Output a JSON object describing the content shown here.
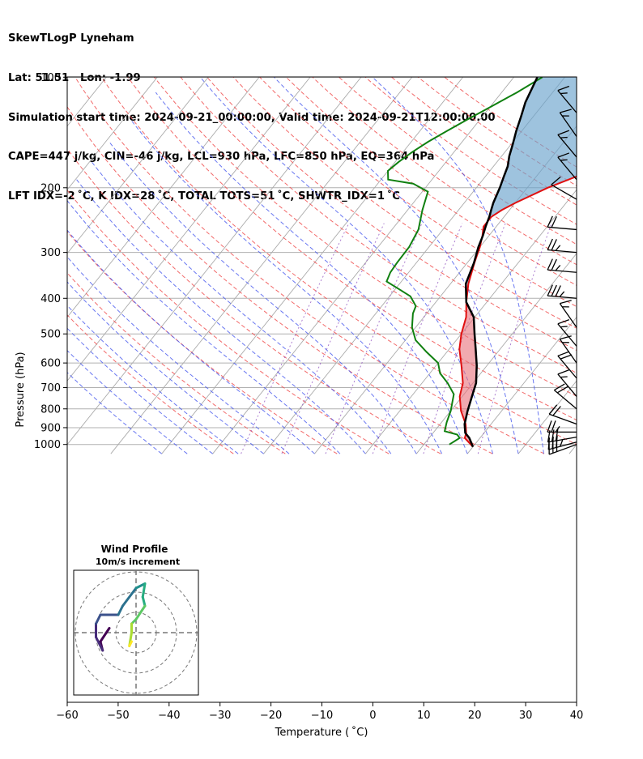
{
  "header": {
    "lines": [
      "SkewTLogP Lyneham",
      "Lat: 51.51   Lon: -1.99",
      "Simulation start time: 2024-09-21_00:00:00, Valid time: 2024-09-21T12:00:00.00",
      "CAPE=447 j/kg, CIN=-46 j/kg, LCL=930 hPa, LFC=850 hPa, EQ=364 hPa",
      "LFT IDX=-2 ˚C, K IDX=28 ˚C, TOTAL TOTS=51 ˚C, SHWTR_IDX=1 ˚C"
    ]
  },
  "chart_data": {
    "type": "line",
    "skew": "skew-T log-p",
    "title": "",
    "xlabel": "Temperature ( ˚C)",
    "ylabel": "Pressure (hPa)",
    "xlim": [
      -60,
      40
    ],
    "ylim": [
      1050,
      100
    ],
    "y_scale": "log",
    "x_ticks": [
      -60,
      -50,
      -40,
      -30,
      -20,
      -10,
      0,
      10,
      20,
      30,
      40
    ],
    "x_tick_labels": [
      "−60",
      "−50",
      "−40",
      "−30",
      "−20",
      "−10",
      "0",
      "10",
      "20",
      "30",
      "40"
    ],
    "y_ticks": [
      1000,
      900,
      800,
      700,
      600,
      500,
      400,
      300,
      200,
      100
    ],
    "y_tick_labels": [
      "1000",
      "900",
      "800",
      "700",
      "600",
      "500",
      "400",
      "300",
      "200",
      "100"
    ],
    "grid": true,
    "series": [
      {
        "role": "temperature",
        "color": "#e01010",
        "points": [
          [
            20,
            1015
          ],
          [
            17,
            960
          ],
          [
            16.5,
            930
          ],
          [
            15,
            880
          ],
          [
            12,
            810
          ],
          [
            9.5,
            740
          ],
          [
            8,
            680
          ],
          [
            5,
            610
          ],
          [
            2,
            550
          ],
          [
            0,
            500
          ],
          [
            -1.7,
            450
          ],
          [
            -4,
            410
          ],
          [
            -6.5,
            365
          ],
          [
            -8.6,
            320
          ],
          [
            -10,
            290
          ],
          [
            -11.3,
            270
          ],
          [
            -12.5,
            255
          ],
          [
            -12.5,
            240
          ],
          [
            -11.5,
            230
          ],
          [
            -10,
            220
          ],
          [
            -6,
            200
          ],
          [
            -2,
            186
          ],
          [
            1.5,
            175
          ],
          [
            4,
            164
          ],
          [
            6,
            152
          ],
          [
            7.5,
            140
          ],
          [
            9,
            128
          ],
          [
            10.5,
            117
          ],
          [
            12,
            100
          ]
        ]
      },
      {
        "role": "dewpoint",
        "color": "#108010",
        "points": [
          [
            15,
            1000
          ],
          [
            16,
            960
          ],
          [
            15,
            940
          ],
          [
            12,
            920
          ],
          [
            11,
            870
          ],
          [
            10,
            810
          ],
          [
            8,
            730
          ],
          [
            5,
            680
          ],
          [
            2,
            640
          ],
          [
            0,
            600
          ],
          [
            -4,
            560
          ],
          [
            -8,
            520
          ],
          [
            -10.7,
            480
          ],
          [
            -12.7,
            440
          ],
          [
            -13.3,
            420
          ],
          [
            -15.9,
            395
          ],
          [
            -18.8,
            380
          ],
          [
            -22.9,
            360
          ],
          [
            -23.6,
            340
          ],
          [
            -23.8,
            320
          ],
          [
            -23.9,
            290
          ],
          [
            -24.8,
            260
          ],
          [
            -27.1,
            230
          ],
          [
            -28.9,
            205
          ],
          [
            -33,
            195
          ],
          [
            -38.6,
            190
          ],
          [
            -40,
            180
          ],
          [
            -39.3,
            170
          ],
          [
            -38.2,
            160
          ],
          [
            -36.7,
            150
          ],
          [
            -34.7,
            140
          ],
          [
            -32.4,
            130
          ],
          [
            -29.8,
            120
          ],
          [
            -27,
            110
          ],
          [
            -24.4,
            100
          ]
        ]
      },
      {
        "role": "parcel",
        "color": "#000000",
        "points": [
          [
            20,
            1015
          ],
          [
            17.9,
            960
          ],
          [
            16.3,
            930
          ],
          [
            14.8,
            880
          ],
          [
            13.3,
            810
          ],
          [
            11.9,
            740
          ],
          [
            10.6,
            680
          ],
          [
            8,
            610
          ],
          [
            5.2,
            550
          ],
          [
            2.6,
            500
          ],
          [
            -0.2,
            450
          ],
          [
            -4,
            410
          ],
          [
            -7,
            365
          ],
          [
            -8.7,
            320
          ],
          [
            -10.3,
            290
          ],
          [
            -11.2,
            270
          ],
          [
            -12.1,
            255
          ],
          [
            -12.9,
            240
          ],
          [
            -13.6,
            230
          ],
          [
            -14.3,
            220
          ],
          [
            -15.4,
            200
          ],
          [
            -16.4,
            186
          ],
          [
            -17.2,
            175
          ],
          [
            -18.5,
            164
          ],
          [
            -19.7,
            152
          ],
          [
            -21.1,
            140
          ],
          [
            -22.4,
            128
          ],
          [
            -23.8,
            117
          ],
          [
            -25.4,
            100
          ]
        ]
      }
    ],
    "wind_barbs": [
      {
        "p": 1000,
        "spd": 30,
        "dir": 250
      },
      {
        "p": 985,
        "spd": 35,
        "dir": 255
      },
      {
        "p": 955,
        "spd": 30,
        "dir": 260
      },
      {
        "p": 925,
        "spd": 25,
        "dir": 270
      },
      {
        "p": 880,
        "spd": 20,
        "dir": 290
      },
      {
        "p": 800,
        "spd": 20,
        "dir": 310
      },
      {
        "p": 740,
        "spd": 15,
        "dir": 320
      },
      {
        "p": 660,
        "spd": 20,
        "dir": 320
      },
      {
        "p": 600,
        "spd": 15,
        "dir": 325
      },
      {
        "p": 540,
        "spd": 15,
        "dir": 320
      },
      {
        "p": 480,
        "spd": 15,
        "dir": 325
      },
      {
        "p": 400,
        "spd": 35,
        "dir": 275
      },
      {
        "p": 340,
        "spd": 25,
        "dir": 275
      },
      {
        "p": 300,
        "spd": 25,
        "dir": 275
      },
      {
        "p": 260,
        "spd": 20,
        "dir": 275
      },
      {
        "p": 215,
        "spd": 10,
        "dir": 300
      },
      {
        "p": 190,
        "spd": 15,
        "dir": 320
      },
      {
        "p": 165,
        "spd": 15,
        "dir": 320
      },
      {
        "p": 145,
        "spd": 15,
        "dir": 325
      },
      {
        "p": 125,
        "spd": 15,
        "dir": 320
      }
    ],
    "inset": {
      "title_line1": "Wind Profile",
      "title_line2": "10m/s increment",
      "rings": 3,
      "hodograph": [
        [
          -6,
          1
        ],
        [
          -8,
          -2
        ],
        [
          -7.5,
          -4
        ],
        [
          -9,
          -1
        ],
        [
          -9,
          2
        ],
        [
          -8,
          4
        ],
        [
          -4,
          4
        ],
        [
          -3,
          6
        ],
        [
          0,
          10
        ],
        [
          2,
          11
        ],
        [
          1.5,
          8
        ],
        [
          2,
          6
        ],
        [
          0,
          3
        ],
        [
          -1,
          2
        ],
        [
          -1,
          0
        ],
        [
          -1.5,
          -3
        ],
        [
          -1,
          -2
        ]
      ]
    }
  }
}
